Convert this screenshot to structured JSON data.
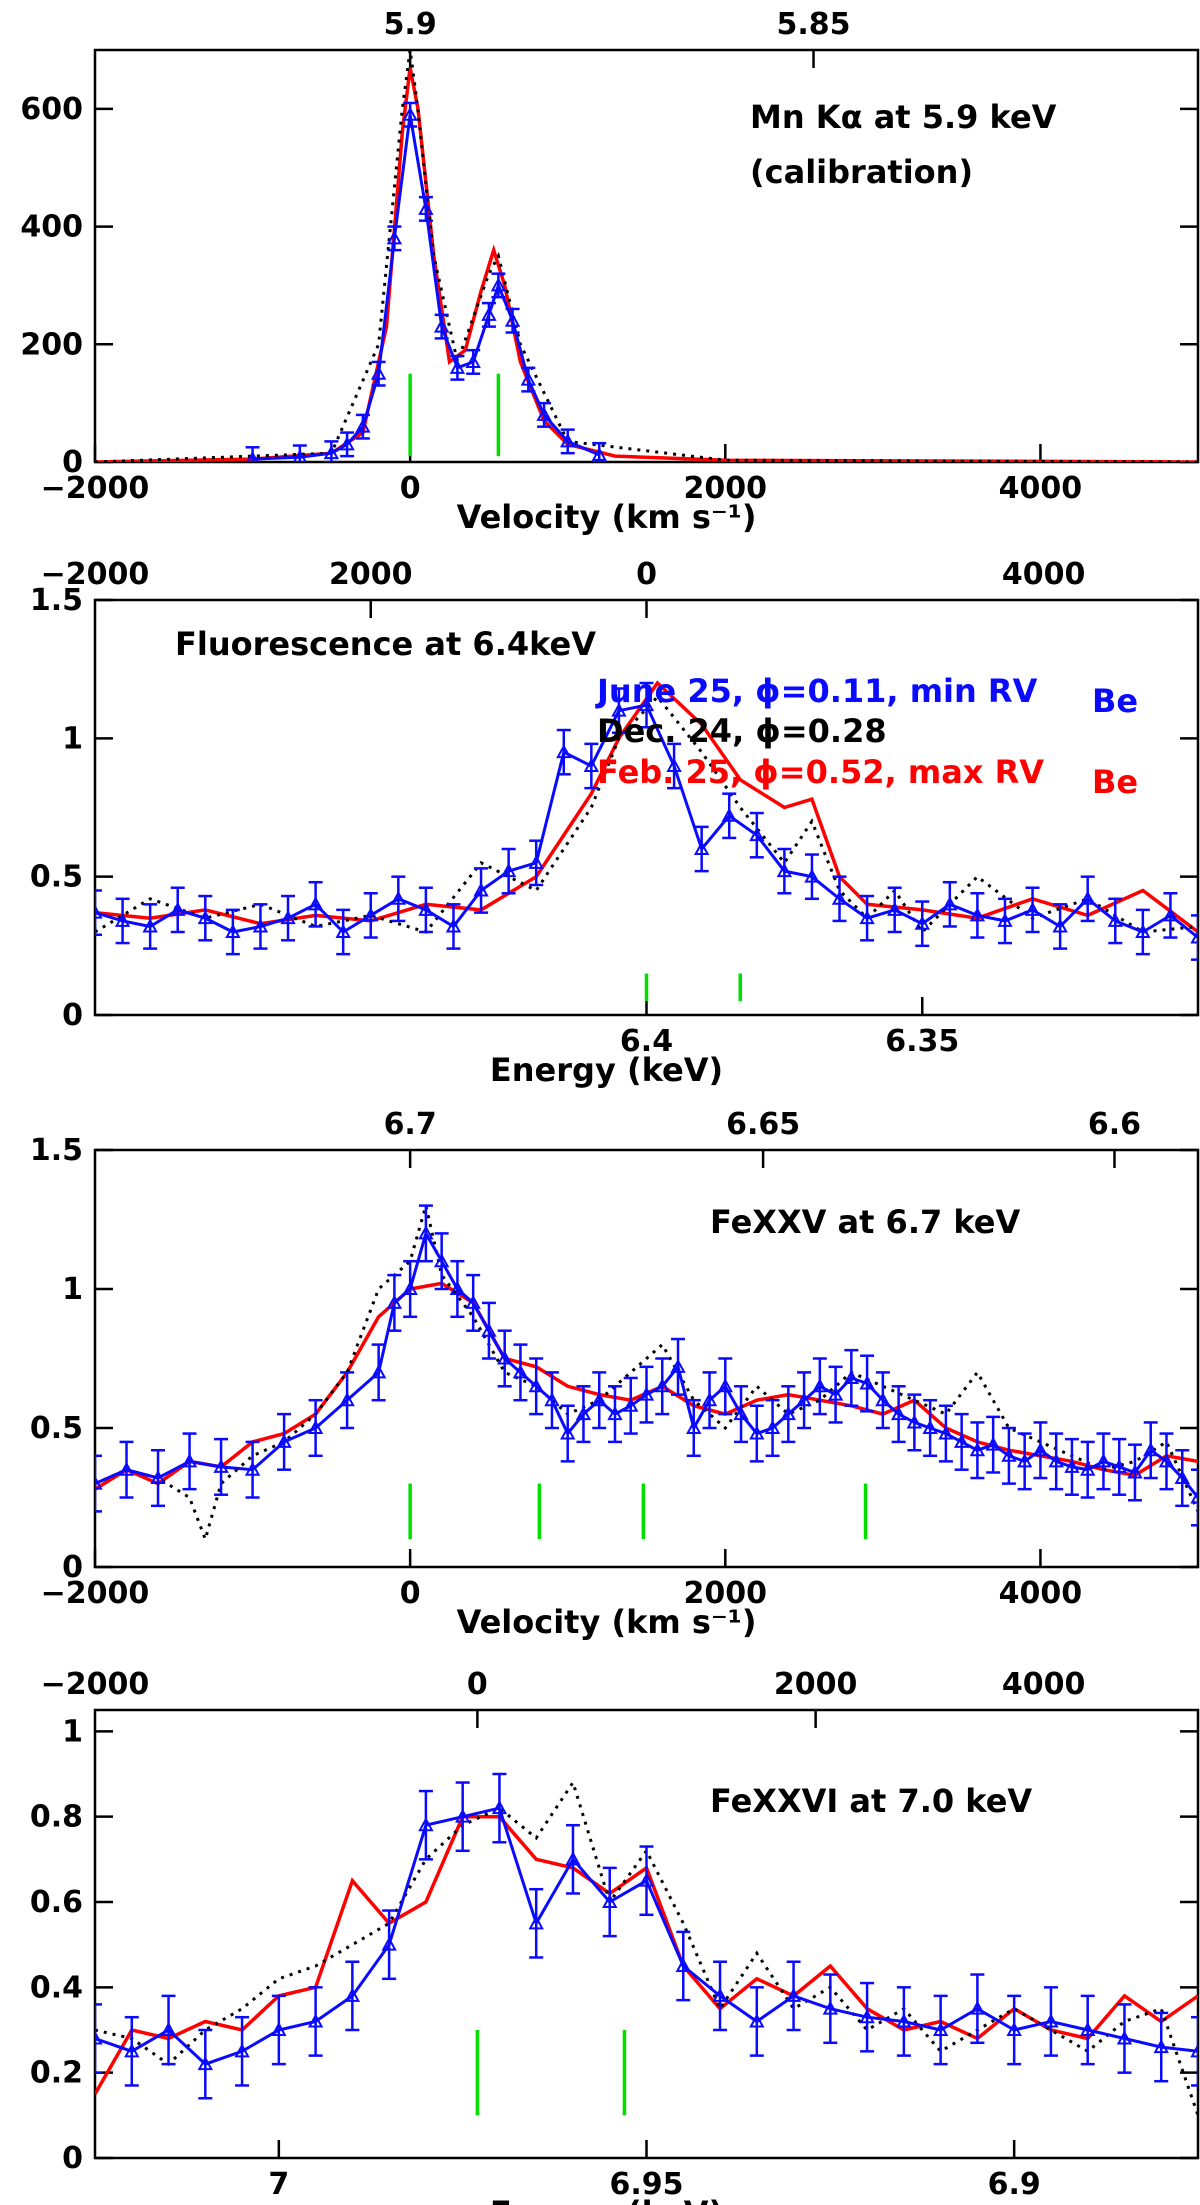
{
  "colors": {
    "blue": "#0a0aff",
    "red": "#ff0000",
    "black": "#000000",
    "green": "#00e000"
  },
  "chart_data": [
    {
      "name": "mn-panel",
      "type": "line",
      "xlim": [
        -2000,
        5000
      ],
      "ylim": [
        0,
        700
      ],
      "yticks": [
        0,
        200,
        400,
        600
      ],
      "yticklabels": [
        "0",
        "200",
        "400",
        "600"
      ],
      "xticks": [
        -2000,
        0,
        2000,
        4000
      ],
      "xticklabels": [
        "−2000",
        "0",
        "2000",
        "4000"
      ],
      "top_ticks": [
        0,
        2560
      ],
      "top_ticklabels": [
        "5.9",
        "5.85"
      ],
      "xlabel": "Velocity (km s⁻¹)",
      "annotations": [
        "Mn Kα at 5.9 keV",
        "(calibration)"
      ],
      "markers": [
        0,
        560
      ],
      "marker_y": [
        10,
        150
      ],
      "series": [
        {
          "color": "red",
          "style": "solid",
          "x": [
            -2000,
            -1000,
            -500,
            -300,
            -150,
            -50,
            0,
            50,
            150,
            250,
            350,
            450,
            530,
            600,
            700,
            850,
            1000,
            1300,
            2000,
            5000
          ],
          "y": [
            0,
            5,
            15,
            50,
            230,
            560,
            670,
            600,
            350,
            170,
            190,
            290,
            360,
            300,
            170,
            70,
            30,
            10,
            3,
            0
          ]
        },
        {
          "color": "black",
          "style": "dotted",
          "x": [
            -2000,
            -500,
            -200,
            -50,
            0,
            40,
            150,
            300,
            500,
            560,
            700,
            1000,
            2000,
            5000
          ],
          "y": [
            0,
            15,
            200,
            600,
            700,
            620,
            350,
            170,
            320,
            350,
            200,
            35,
            3,
            0
          ]
        },
        {
          "color": "blue",
          "style": "errbar",
          "err": 20,
          "x": [
            -1000,
            -700,
            -500,
            -400,
            -300,
            -200,
            -100,
            0,
            100,
            200,
            300,
            400,
            500,
            560,
            650,
            750,
            850,
            1000,
            1200
          ],
          "y": [
            5,
            8,
            15,
            30,
            60,
            150,
            380,
            590,
            430,
            230,
            160,
            170,
            250,
            300,
            240,
            140,
            80,
            35,
            12
          ]
        }
      ]
    },
    {
      "name": "fe64-panel",
      "type": "line",
      "xlim": [
        6.5,
        6.3
      ],
      "ylim": [
        0,
        1.5
      ],
      "yticks": [
        0,
        0.5,
        1,
        1.5
      ],
      "yticklabels": [
        "0",
        "0.5",
        "1",
        "1.5"
      ],
      "xticks": [
        6.4,
        6.35
      ],
      "xticklabels": [
        "6.4",
        "6.35"
      ],
      "top_ticks": [
        6.4,
        6.45
      ],
      "top_ticklabels": [
        "0",
        "2000"
      ],
      "top_extra": [
        {
          "label": "−2000",
          "frac": 0.0
        },
        {
          "label": "4000",
          "frac": 0.86
        }
      ],
      "xlabel": "Energy (keV)",
      "annotations": [
        "Fluorescence at 6.4keV",
        "June 25, ϕ=0.11, min RV",
        "Be",
        "Dec. 24, ϕ=0.28",
        "Feb. 25, ϕ=0.52, max RV",
        "Be"
      ],
      "markers": [
        6.4,
        6.383
      ],
      "marker_y": [
        0.05,
        0.15
      ],
      "series": [
        {
          "color": "red",
          "style": "solid",
          "x": [
            6.5,
            6.49,
            6.48,
            6.47,
            6.46,
            6.45,
            6.44,
            6.43,
            6.42,
            6.41,
            6.405,
            6.398,
            6.39,
            6.383,
            6.375,
            6.37,
            6.365,
            6.36,
            6.35,
            6.34,
            6.33,
            6.32,
            6.31,
            6.3
          ],
          "y": [
            0.37,
            0.35,
            0.38,
            0.33,
            0.36,
            0.34,
            0.4,
            0.38,
            0.5,
            0.8,
            1.0,
            1.2,
            1.05,
            0.85,
            0.75,
            0.78,
            0.5,
            0.4,
            0.38,
            0.35,
            0.42,
            0.36,
            0.45,
            0.3
          ]
        },
        {
          "color": "black",
          "style": "dotted",
          "x": [
            6.5,
            6.49,
            6.48,
            6.47,
            6.46,
            6.45,
            6.44,
            6.43,
            6.42,
            6.41,
            6.405,
            6.398,
            6.39,
            6.383,
            6.375,
            6.37,
            6.365,
            6.36,
            6.355,
            6.35,
            6.34,
            6.33,
            6.32,
            6.31,
            6.3
          ],
          "y": [
            0.3,
            0.42,
            0.35,
            0.4,
            0.32,
            0.36,
            0.3,
            0.55,
            0.45,
            0.75,
            1.0,
            1.15,
            0.95,
            0.75,
            0.55,
            0.7,
            0.45,
            0.35,
            0.45,
            0.3,
            0.5,
            0.35,
            0.42,
            0.3,
            0.32
          ]
        },
        {
          "color": "blue",
          "style": "errbar",
          "err": 0.08,
          "x": [
            6.5,
            6.495,
            6.49,
            6.485,
            6.48,
            6.475,
            6.47,
            6.465,
            6.46,
            6.455,
            6.45,
            6.445,
            6.44,
            6.435,
            6.43,
            6.425,
            6.42,
            6.415,
            6.41,
            6.405,
            6.4,
            6.395,
            6.39,
            6.385,
            6.38,
            6.375,
            6.37,
            6.365,
            6.36,
            6.355,
            6.35,
            6.345,
            6.34,
            6.335,
            6.33,
            6.325,
            6.32,
            6.315,
            6.31,
            6.305,
            6.3
          ],
          "y": [
            0.37,
            0.34,
            0.32,
            0.38,
            0.35,
            0.3,
            0.32,
            0.35,
            0.4,
            0.3,
            0.36,
            0.42,
            0.38,
            0.32,
            0.45,
            0.52,
            0.55,
            0.95,
            0.9,
            1.1,
            1.12,
            0.9,
            0.6,
            0.72,
            0.65,
            0.52,
            0.5,
            0.42,
            0.35,
            0.38,
            0.33,
            0.4,
            0.36,
            0.34,
            0.38,
            0.32,
            0.42,
            0.34,
            0.3,
            0.36,
            0.28
          ]
        }
      ]
    },
    {
      "name": "fexxv-panel",
      "type": "line",
      "xlim": [
        -2000,
        5000
      ],
      "ylim": [
        0,
        1.5
      ],
      "yticks": [
        0,
        0.5,
        1,
        1.5
      ],
      "yticklabels": [
        "0",
        "0.5",
        "1",
        "1.5"
      ],
      "xticks": [
        -2000,
        0,
        2000,
        4000
      ],
      "xticklabels": [
        "−2000",
        "0",
        "2000",
        "4000"
      ],
      "top_ticks": [
        0,
        2240,
        4470
      ],
      "top_ticklabels": [
        "6.7",
        "6.65",
        "6.6"
      ],
      "xlabel": "Velocity (km s⁻¹)",
      "annotations": [
        "FeXXV at 6.7 keV"
      ],
      "markers": [
        0,
        820,
        1480,
        2890
      ],
      "marker_y": [
        0.1,
        0.3
      ],
      "series": [
        {
          "color": "red",
          "style": "solid",
          "x": [
            -2000,
            -1800,
            -1600,
            -1400,
            -1200,
            -1000,
            -800,
            -600,
            -400,
            -200,
            0,
            200,
            400,
            600,
            800,
            1000,
            1200,
            1400,
            1600,
            1800,
            2000,
            2200,
            2400,
            2600,
            2800,
            3000,
            3200,
            3400,
            3600,
            3800,
            4000,
            4200,
            4400,
            4600,
            4800,
            5000
          ],
          "y": [
            0.28,
            0.35,
            0.3,
            0.38,
            0.36,
            0.45,
            0.48,
            0.55,
            0.7,
            0.9,
            1.0,
            1.02,
            0.95,
            0.75,
            0.72,
            0.65,
            0.62,
            0.6,
            0.65,
            0.58,
            0.55,
            0.6,
            0.62,
            0.6,
            0.58,
            0.55,
            0.6,
            0.5,
            0.45,
            0.42,
            0.4,
            0.38,
            0.35,
            0.33,
            0.4,
            0.38
          ]
        },
        {
          "color": "black",
          "style": "dotted",
          "x": [
            -2000,
            -1800,
            -1600,
            -1400,
            -1300,
            -1200,
            -1000,
            -800,
            -600,
            -400,
            -200,
            0,
            100,
            200,
            400,
            600,
            800,
            1000,
            1200,
            1400,
            1600,
            1800,
            2000,
            2200,
            2400,
            2600,
            2800,
            3000,
            3200,
            3400,
            3600,
            3800,
            4000,
            4200,
            4400,
            4600,
            4800,
            5000
          ],
          "y": [
            0.3,
            0.35,
            0.32,
            0.25,
            0.1,
            0.3,
            0.4,
            0.45,
            0.55,
            0.7,
            1.0,
            1.1,
            1.3,
            1.05,
            0.9,
            0.7,
            0.65,
            0.55,
            0.6,
            0.7,
            0.8,
            0.6,
            0.5,
            0.65,
            0.55,
            0.6,
            0.7,
            0.65,
            0.6,
            0.55,
            0.7,
            0.5,
            0.45,
            0.4,
            0.35,
            0.38,
            0.45,
            0.2
          ]
        },
        {
          "color": "blue",
          "style": "errbar",
          "err": 0.1,
          "x": [
            -2000,
            -1800,
            -1600,
            -1400,
            -1200,
            -1000,
            -800,
            -600,
            -400,
            -200,
            -100,
            0,
            100,
            200,
            300,
            400,
            500,
            600,
            700,
            800,
            900,
            1000,
            1100,
            1200,
            1300,
            1400,
            1500,
            1600,
            1700,
            1800,
            1900,
            2000,
            2100,
            2200,
            2300,
            2400,
            2500,
            2600,
            2700,
            2800,
            2900,
            3000,
            3100,
            3200,
            3300,
            3400,
            3500,
            3600,
            3700,
            3800,
            3900,
            4000,
            4100,
            4200,
            4300,
            4400,
            4500,
            4600,
            4700,
            4800,
            4900,
            5000
          ],
          "y": [
            0.3,
            0.35,
            0.32,
            0.38,
            0.36,
            0.35,
            0.45,
            0.5,
            0.6,
            0.7,
            0.95,
            1.0,
            1.2,
            1.1,
            1.0,
            0.95,
            0.85,
            0.75,
            0.7,
            0.65,
            0.6,
            0.48,
            0.55,
            0.6,
            0.55,
            0.58,
            0.62,
            0.65,
            0.72,
            0.5,
            0.6,
            0.65,
            0.55,
            0.48,
            0.5,
            0.55,
            0.6,
            0.65,
            0.62,
            0.68,
            0.66,
            0.6,
            0.55,
            0.52,
            0.5,
            0.48,
            0.45,
            0.42,
            0.44,
            0.4,
            0.38,
            0.42,
            0.38,
            0.36,
            0.35,
            0.38,
            0.36,
            0.34,
            0.42,
            0.38,
            0.32,
            0.25
          ]
        }
      ]
    },
    {
      "name": "fexxvi-panel",
      "type": "line",
      "xlim": [
        7.025,
        6.875
      ],
      "ylim": [
        0,
        1.05
      ],
      "yticks": [
        0,
        0.2,
        0.4,
        0.6,
        0.8,
        1
      ],
      "yticklabels": [
        "0",
        "0.2",
        "0.4",
        "0.6",
        "0.8",
        "1"
      ],
      "xticks": [
        7.0,
        6.95,
        6.9
      ],
      "xticklabels": [
        "7",
        "6.95",
        "6.9"
      ],
      "top_ticks": [
        6.973,
        6.927
      ],
      "top_ticklabels": [
        "0",
        "2000"
      ],
      "top_extra": [
        {
          "label": "−2000",
          "frac": 0.0
        },
        {
          "label": "4000",
          "frac": 0.86
        }
      ],
      "xlabel": "Energy (keV)",
      "annotations": [
        "FeXXVI at 7.0 keV"
      ],
      "markers": [
        6.973,
        6.953
      ],
      "marker_y": [
        0.1,
        0.3
      ],
      "series": [
        {
          "color": "red",
          "style": "solid",
          "x": [
            7.025,
            7.02,
            7.015,
            7.01,
            7.005,
            7.0,
            6.995,
            6.99,
            6.985,
            6.98,
            6.975,
            6.97,
            6.965,
            6.96,
            6.955,
            6.95,
            6.945,
            6.94,
            6.935,
            6.93,
            6.925,
            6.92,
            6.915,
            6.91,
            6.905,
            6.9,
            6.895,
            6.89,
            6.885,
            6.88,
            6.875
          ],
          "y": [
            0.15,
            0.3,
            0.28,
            0.32,
            0.3,
            0.38,
            0.4,
            0.65,
            0.55,
            0.6,
            0.8,
            0.8,
            0.7,
            0.68,
            0.62,
            0.68,
            0.45,
            0.35,
            0.42,
            0.38,
            0.45,
            0.35,
            0.3,
            0.32,
            0.28,
            0.35,
            0.3,
            0.28,
            0.38,
            0.32,
            0.38
          ]
        },
        {
          "color": "black",
          "style": "dotted",
          "x": [
            7.025,
            7.02,
            7.015,
            7.01,
            7.005,
            7.0,
            6.995,
            6.99,
            6.985,
            6.98,
            6.975,
            6.97,
            6.965,
            6.96,
            6.955,
            6.95,
            6.945,
            6.94,
            6.935,
            6.93,
            6.925,
            6.92,
            6.915,
            6.91,
            6.905,
            6.9,
            6.895,
            6.89,
            6.885,
            6.88,
            6.875
          ],
          "y": [
            0.3,
            0.28,
            0.22,
            0.3,
            0.35,
            0.42,
            0.45,
            0.5,
            0.55,
            0.7,
            0.78,
            0.82,
            0.75,
            0.88,
            0.6,
            0.72,
            0.55,
            0.35,
            0.48,
            0.35,
            0.4,
            0.3,
            0.35,
            0.25,
            0.3,
            0.35,
            0.3,
            0.25,
            0.32,
            0.35,
            0.1
          ]
        },
        {
          "color": "blue",
          "style": "errbar",
          "err": 0.08,
          "x": [
            7.025,
            7.02,
            7.015,
            7.01,
            7.005,
            7.0,
            6.995,
            6.99,
            6.985,
            6.98,
            6.975,
            6.97,
            6.965,
            6.96,
            6.955,
            6.95,
            6.945,
            6.94,
            6.935,
            6.93,
            6.925,
            6.92,
            6.915,
            6.91,
            6.905,
            6.9,
            6.895,
            6.89,
            6.885,
            6.88,
            6.875
          ],
          "y": [
            0.28,
            0.25,
            0.3,
            0.22,
            0.25,
            0.3,
            0.32,
            0.38,
            0.5,
            0.78,
            0.8,
            0.82,
            0.55,
            0.7,
            0.6,
            0.65,
            0.45,
            0.38,
            0.32,
            0.38,
            0.35,
            0.33,
            0.32,
            0.3,
            0.35,
            0.3,
            0.32,
            0.3,
            0.28,
            0.26,
            0.25
          ]
        }
      ]
    }
  ]
}
